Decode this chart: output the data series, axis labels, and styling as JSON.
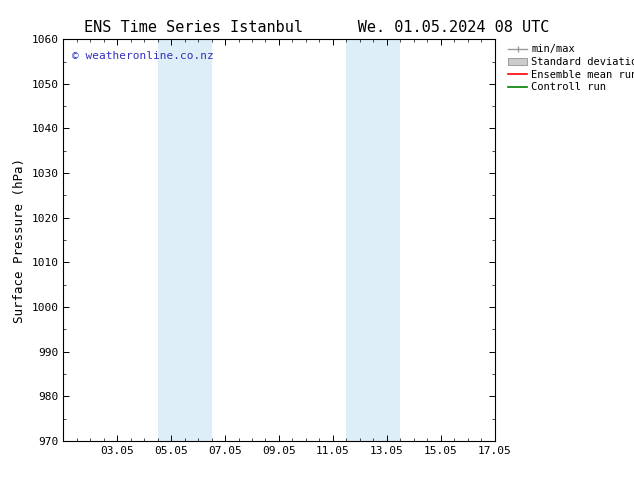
{
  "title_left": "ENS Time Series Istanbul",
  "title_right": "We. 01.05.2024 08 UTC",
  "ylabel": "Surface Pressure (hPa)",
  "ylim": [
    970,
    1060
  ],
  "yticks": [
    970,
    980,
    990,
    1000,
    1010,
    1020,
    1030,
    1040,
    1050,
    1060
  ],
  "xlim": [
    0,
    16
  ],
  "xtick_labels": [
    "03.05",
    "05.05",
    "07.05",
    "09.05",
    "11.05",
    "13.05",
    "15.05",
    "17.05"
  ],
  "xtick_positions": [
    2,
    4,
    6,
    8,
    10,
    12,
    14,
    16
  ],
  "shaded_bands": [
    {
      "x_start": 3.5,
      "x_end": 5.5,
      "color": "#ddeef8"
    },
    {
      "x_start": 10.5,
      "x_end": 12.5,
      "color": "#ddeef8"
    }
  ],
  "watermark": "© weatheronline.co.nz",
  "watermark_color": "#3333bb",
  "legend_labels": [
    "min/max",
    "Standard deviation",
    "Ensemble mean run",
    "Controll run"
  ],
  "legend_colors": [
    "#999999",
    "#cccccc",
    "#ff0000",
    "#008000"
  ],
  "bg_color": "#ffffff",
  "spine_color": "#000000",
  "title_fontsize": 11,
  "tick_fontsize": 8,
  "ylabel_fontsize": 9,
  "watermark_fontsize": 8
}
